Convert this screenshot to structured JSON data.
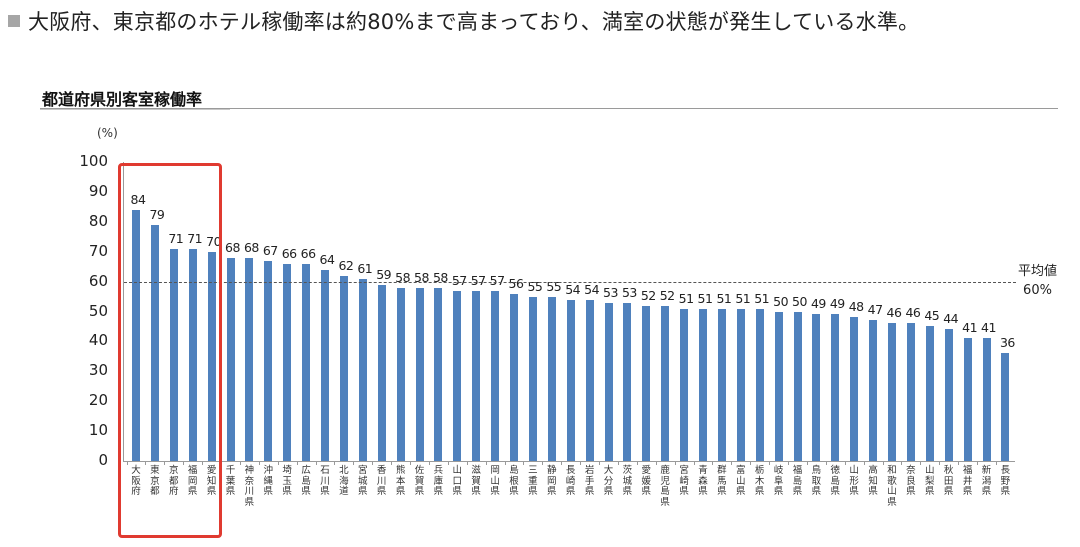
{
  "headline": "大阪府、東京都のホテル稼働率は約80%まで高まっており、満室の状態が発生している水準。",
  "chart_title": "都道府県別客室稼働率",
  "chart_data": {
    "type": "bar",
    "title": "都道府県別客室稼働率",
    "xlabel": "",
    "ylabel": "(%)",
    "ylim": [
      0,
      100
    ],
    "yticks": [
      0,
      10,
      20,
      30,
      40,
      50,
      60,
      70,
      80,
      90,
      100
    ],
    "grid": false,
    "legend": null,
    "categories": [
      "大阪府",
      "東京都",
      "京都府",
      "福岡県",
      "愛知県",
      "千葉県",
      "神奈川県",
      "沖縄県",
      "埼玉県",
      "広島県",
      "石川県",
      "北海道",
      "宮城県",
      "香川県",
      "熊本県",
      "佐賀県",
      "兵庫県",
      "山口県",
      "滋賀県",
      "岡山県",
      "島根県",
      "三重県",
      "静岡県",
      "長崎県",
      "岩手県",
      "大分県",
      "茨城県",
      "愛媛県",
      "鹿児島県",
      "宮崎県",
      "青森県",
      "群馬県",
      "富山県",
      "栃木県",
      "岐阜県",
      "福島県",
      "鳥取県",
      "徳島県",
      "山形県",
      "高知県",
      "和歌山県",
      "奈良県",
      "山梨県",
      "秋田県",
      "福井県",
      "新潟県",
      "長野県"
    ],
    "values": [
      84,
      79,
      71,
      71,
      70,
      68,
      68,
      67,
      66,
      66,
      64,
      62,
      61,
      59,
      58,
      58,
      58,
      57,
      57,
      57,
      56,
      55,
      55,
      54,
      54,
      53,
      53,
      52,
      52,
      51,
      51,
      51,
      51,
      51,
      50,
      50,
      49,
      49,
      48,
      47,
      46,
      46,
      45,
      44,
      41,
      41,
      36
    ],
    "bar_color": "#4f81bd",
    "reference_line": {
      "value": 60,
      "label_line1": "平均値",
      "label_line2": "60%",
      "style": "dashed"
    },
    "highlight": {
      "categories": [
        "大阪府",
        "東京都",
        "京都府",
        "福岡県",
        "愛知県"
      ],
      "color": "#e03a30"
    }
  }
}
